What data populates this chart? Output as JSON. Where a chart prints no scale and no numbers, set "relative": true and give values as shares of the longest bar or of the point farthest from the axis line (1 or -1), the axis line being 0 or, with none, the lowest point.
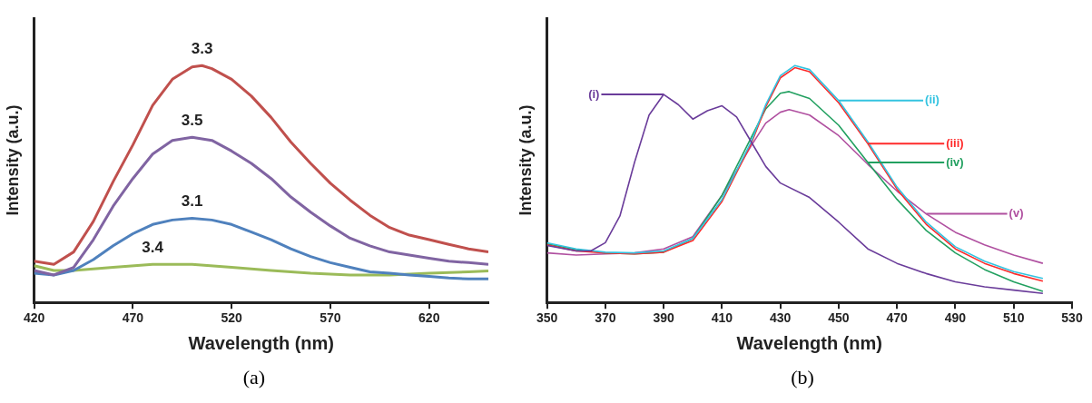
{
  "chart_data": [
    {
      "type": "line",
      "relative": true,
      "xlabel": "Wavelength (nm)",
      "ylabel": "Intensity (a.u.)",
      "xlim": [
        420,
        650
      ],
      "xticks": [
        420,
        470,
        520,
        570,
        620
      ],
      "grid": false,
      "legend": false,
      "annotations": [
        "(a)"
      ],
      "series": [
        {
          "name": "3.3",
          "color": "#c0504d",
          "x": [
            420,
            430,
            440,
            450,
            460,
            470,
            480,
            490,
            500,
            505,
            510,
            520,
            530,
            540,
            550,
            560,
            570,
            580,
            590,
            600,
            610,
            620,
            630,
            640,
            650
          ],
          "values": [
            0.174,
            0.161,
            0.213,
            0.342,
            0.51,
            0.665,
            0.832,
            0.942,
            0.994,
            1,
            0.987,
            0.942,
            0.871,
            0.781,
            0.677,
            0.587,
            0.503,
            0.432,
            0.368,
            0.316,
            0.284,
            0.265,
            0.245,
            0.226,
            0.213
          ]
        },
        {
          "name": "3.5",
          "color": "#8064a2",
          "x": [
            420,
            430,
            440,
            450,
            460,
            470,
            480,
            490,
            500,
            510,
            520,
            530,
            540,
            550,
            560,
            570,
            580,
            590,
            600,
            610,
            620,
            630,
            640,
            650
          ],
          "values": [
            0.135,
            0.116,
            0.148,
            0.265,
            0.406,
            0.523,
            0.626,
            0.684,
            0.697,
            0.684,
            0.639,
            0.587,
            0.523,
            0.445,
            0.381,
            0.323,
            0.271,
            0.239,
            0.213,
            0.2,
            0.187,
            0.174,
            0.168,
            0.161
          ]
        },
        {
          "name": "3.1",
          "color": "#4f81bd",
          "x": [
            420,
            430,
            440,
            450,
            460,
            470,
            480,
            490,
            500,
            510,
            520,
            530,
            540,
            550,
            560,
            570,
            580,
            590,
            600,
            610,
            620,
            630,
            640,
            650
          ],
          "values": [
            0.123,
            0.116,
            0.135,
            0.181,
            0.239,
            0.29,
            0.329,
            0.348,
            0.355,
            0.348,
            0.329,
            0.297,
            0.265,
            0.226,
            0.194,
            0.168,
            0.148,
            0.129,
            0.123,
            0.116,
            0.11,
            0.103,
            0.099,
            0.099
          ]
        },
        {
          "name": "3.4",
          "color": "#9bbb59",
          "x": [
            420,
            430,
            440,
            460,
            480,
            500,
            520,
            540,
            560,
            580,
            600,
            620,
            640,
            650
          ],
          "values": [
            0.155,
            0.135,
            0.135,
            0.148,
            0.161,
            0.161,
            0.148,
            0.135,
            0.123,
            0.116,
            0.116,
            0.123,
            0.129,
            0.133
          ]
        }
      ]
    },
    {
      "type": "line",
      "relative": true,
      "xlabel": "Wavelength (nm)",
      "ylabel": "Intensity (a.u.)",
      "xlim": [
        350,
        530
      ],
      "xticks": [
        350,
        370,
        390,
        410,
        430,
        450,
        470,
        490,
        510,
        530
      ],
      "grid": false,
      "legend": false,
      "annotations": [
        "(b)"
      ],
      "series": [
        {
          "name": "(i)",
          "color": "#6a3c9a",
          "x": [
            350,
            360,
            365,
            370,
            375,
            380,
            385,
            390,
            395,
            400,
            405,
            410,
            415,
            420,
            425,
            430,
            440,
            450,
            460,
            470,
            480,
            490,
            500,
            510,
            520
          ],
          "values": [
            0.24,
            0.217,
            0.217,
            0.252,
            0.365,
            0.591,
            0.791,
            0.878,
            0.835,
            0.774,
            0.809,
            0.83,
            0.783,
            0.678,
            0.574,
            0.504,
            0.443,
            0.339,
            0.226,
            0.165,
            0.122,
            0.087,
            0.066,
            0.052,
            0.038
          ]
        },
        {
          "name": "(ii)",
          "color": "#33c3e0",
          "x": [
            350,
            360,
            370,
            380,
            390,
            400,
            410,
            420,
            425,
            430,
            435,
            440,
            450,
            460,
            470,
            480,
            490,
            500,
            510,
            520
          ],
          "values": [
            0.252,
            0.226,
            0.212,
            0.209,
            0.217,
            0.27,
            0.435,
            0.678,
            0.835,
            0.957,
            1,
            0.983,
            0.852,
            0.678,
            0.487,
            0.339,
            0.235,
            0.174,
            0.13,
            0.101
          ]
        },
        {
          "name": "(iii)",
          "color": "#ff2a2a",
          "x": [
            350,
            360,
            370,
            380,
            390,
            400,
            410,
            420,
            425,
            430,
            435,
            440,
            450,
            460,
            470,
            480,
            490,
            500,
            510,
            520
          ],
          "values": [
            0.243,
            0.217,
            0.209,
            0.205,
            0.212,
            0.261,
            0.426,
            0.67,
            0.826,
            0.948,
            0.991,
            0.974,
            0.843,
            0.67,
            0.478,
            0.33,
            0.226,
            0.165,
            0.122,
            0.09
          ]
        },
        {
          "name": "(iv)",
          "color": "#22a060",
          "x": [
            350,
            360,
            370,
            380,
            390,
            400,
            410,
            420,
            425,
            430,
            433,
            440,
            450,
            460,
            470,
            480,
            490,
            500,
            510,
            520
          ],
          "values": [
            0.247,
            0.223,
            0.209,
            0.205,
            0.212,
            0.27,
            0.452,
            0.696,
            0.817,
            0.883,
            0.89,
            0.861,
            0.748,
            0.591,
            0.435,
            0.304,
            0.209,
            0.139,
            0.087,
            0.047
          ]
        },
        {
          "name": "(v)",
          "color": "#b050a0",
          "x": [
            350,
            360,
            370,
            380,
            390,
            400,
            410,
            420,
            425,
            430,
            433,
            440,
            450,
            460,
            470,
            480,
            490,
            500,
            510,
            520
          ],
          "values": [
            0.209,
            0.2,
            0.205,
            0.209,
            0.226,
            0.278,
            0.452,
            0.661,
            0.757,
            0.803,
            0.814,
            0.791,
            0.704,
            0.583,
            0.47,
            0.374,
            0.296,
            0.243,
            0.2,
            0.165
          ]
        }
      ]
    }
  ]
}
